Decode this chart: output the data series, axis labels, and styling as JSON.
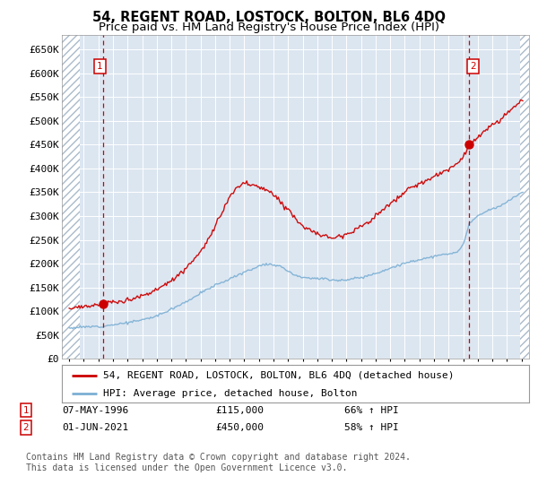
{
  "title": "54, REGENT ROAD, LOSTOCK, BOLTON, BL6 4DQ",
  "subtitle": "Price paid vs. HM Land Registry's House Price Index (HPI)",
  "ylim": [
    0,
    680000
  ],
  "yticks": [
    0,
    50000,
    100000,
    150000,
    200000,
    250000,
    300000,
    350000,
    400000,
    450000,
    500000,
    550000,
    600000,
    650000
  ],
  "xlim_start": 1993.5,
  "xlim_end": 2025.5,
  "hatch_left_end": 1994.75,
  "hatch_right_start": 2024.92,
  "sale1_x": 1996.35,
  "sale1_y": 115000,
  "sale2_x": 2021.42,
  "sale2_y": 450000,
  "sale1_date": "07-MAY-1996",
  "sale1_price": "£115,000",
  "sale1_hpi": "66% ↑ HPI",
  "sale2_date": "01-JUN-2021",
  "sale2_price": "£450,000",
  "sale2_hpi": "58% ↑ HPI",
  "legend_label_property": "54, REGENT ROAD, LOSTOCK, BOLTON, BL6 4DQ (detached house)",
  "legend_label_hpi": "HPI: Average price, detached house, Bolton",
  "footer": "Contains HM Land Registry data © Crown copyright and database right 2024.\nThis data is licensed under the Open Government Licence v3.0.",
  "bg_color": "#dce6f1",
  "line_color_property": "#cc0000",
  "line_color_hpi": "#7bafd4",
  "title_fontsize": 10.5,
  "subtitle_fontsize": 9.5,
  "tick_fontsize": 8
}
